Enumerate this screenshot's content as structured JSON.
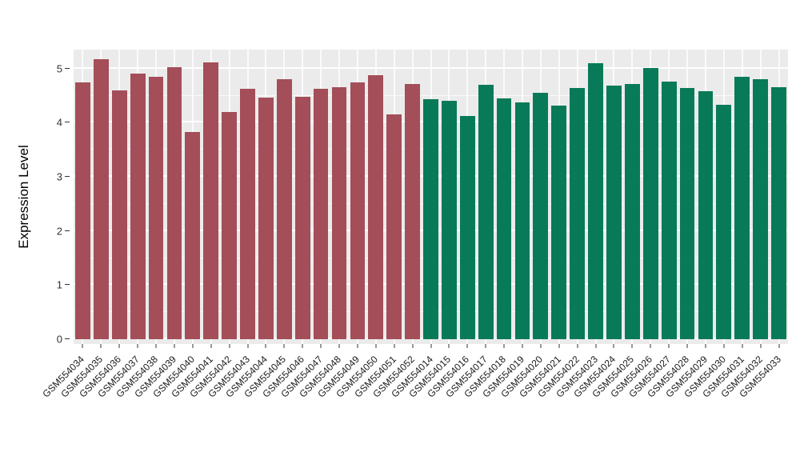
{
  "chart_data": {
    "type": "bar",
    "title": "",
    "xlabel": "",
    "ylabel": "Expression Level",
    "ylim": [
      0,
      5.35
    ],
    "yticks": [
      0,
      1,
      2,
      3,
      4,
      5
    ],
    "minor_step": 0.5,
    "grid": true,
    "legend": "none",
    "panel_bg": "#ebebeb",
    "grid_color": "#ffffff",
    "group_colors": [
      "#a34e58",
      "#087a58"
    ],
    "categories": [
      "GSM554034",
      "GSM554035",
      "GSM554036",
      "GSM554037",
      "GSM554038",
      "GSM554039",
      "GSM554040",
      "GSM554041",
      "GSM554042",
      "GSM554043",
      "GSM554044",
      "GSM554045",
      "GSM554046",
      "GSM554047",
      "GSM554048",
      "GSM554049",
      "GSM554050",
      "GSM554051",
      "GSM554052",
      "GSM554014",
      "GSM554015",
      "GSM554016",
      "GSM554017",
      "GSM554018",
      "GSM554019",
      "GSM554020",
      "GSM554021",
      "GSM554022",
      "GSM554023",
      "GSM554024",
      "GSM554025",
      "GSM554026",
      "GSM554027",
      "GSM554028",
      "GSM554029",
      "GSM554030",
      "GSM554031",
      "GSM554032",
      "GSM554033"
    ],
    "values": [
      4.75,
      5.18,
      4.6,
      4.9,
      4.85,
      5.02,
      3.83,
      5.12,
      4.2,
      4.63,
      4.46,
      4.8,
      4.48,
      4.62,
      4.65,
      4.75,
      4.88,
      4.16,
      4.72,
      4.44,
      4.41,
      4.12,
      4.7,
      4.45,
      4.38,
      4.55,
      4.31,
      4.64,
      5.1,
      4.68,
      4.71,
      5.01,
      4.76,
      4.64,
      4.58,
      4.33,
      4.85,
      4.81,
      4.65
    ],
    "groups": [
      0,
      0,
      0,
      0,
      0,
      0,
      0,
      0,
      0,
      0,
      0,
      0,
      0,
      0,
      0,
      0,
      0,
      0,
      0,
      1,
      1,
      1,
      1,
      1,
      1,
      1,
      1,
      1,
      1,
      1,
      1,
      1,
      1,
      1,
      1,
      1,
      1,
      1,
      1
    ]
  }
}
